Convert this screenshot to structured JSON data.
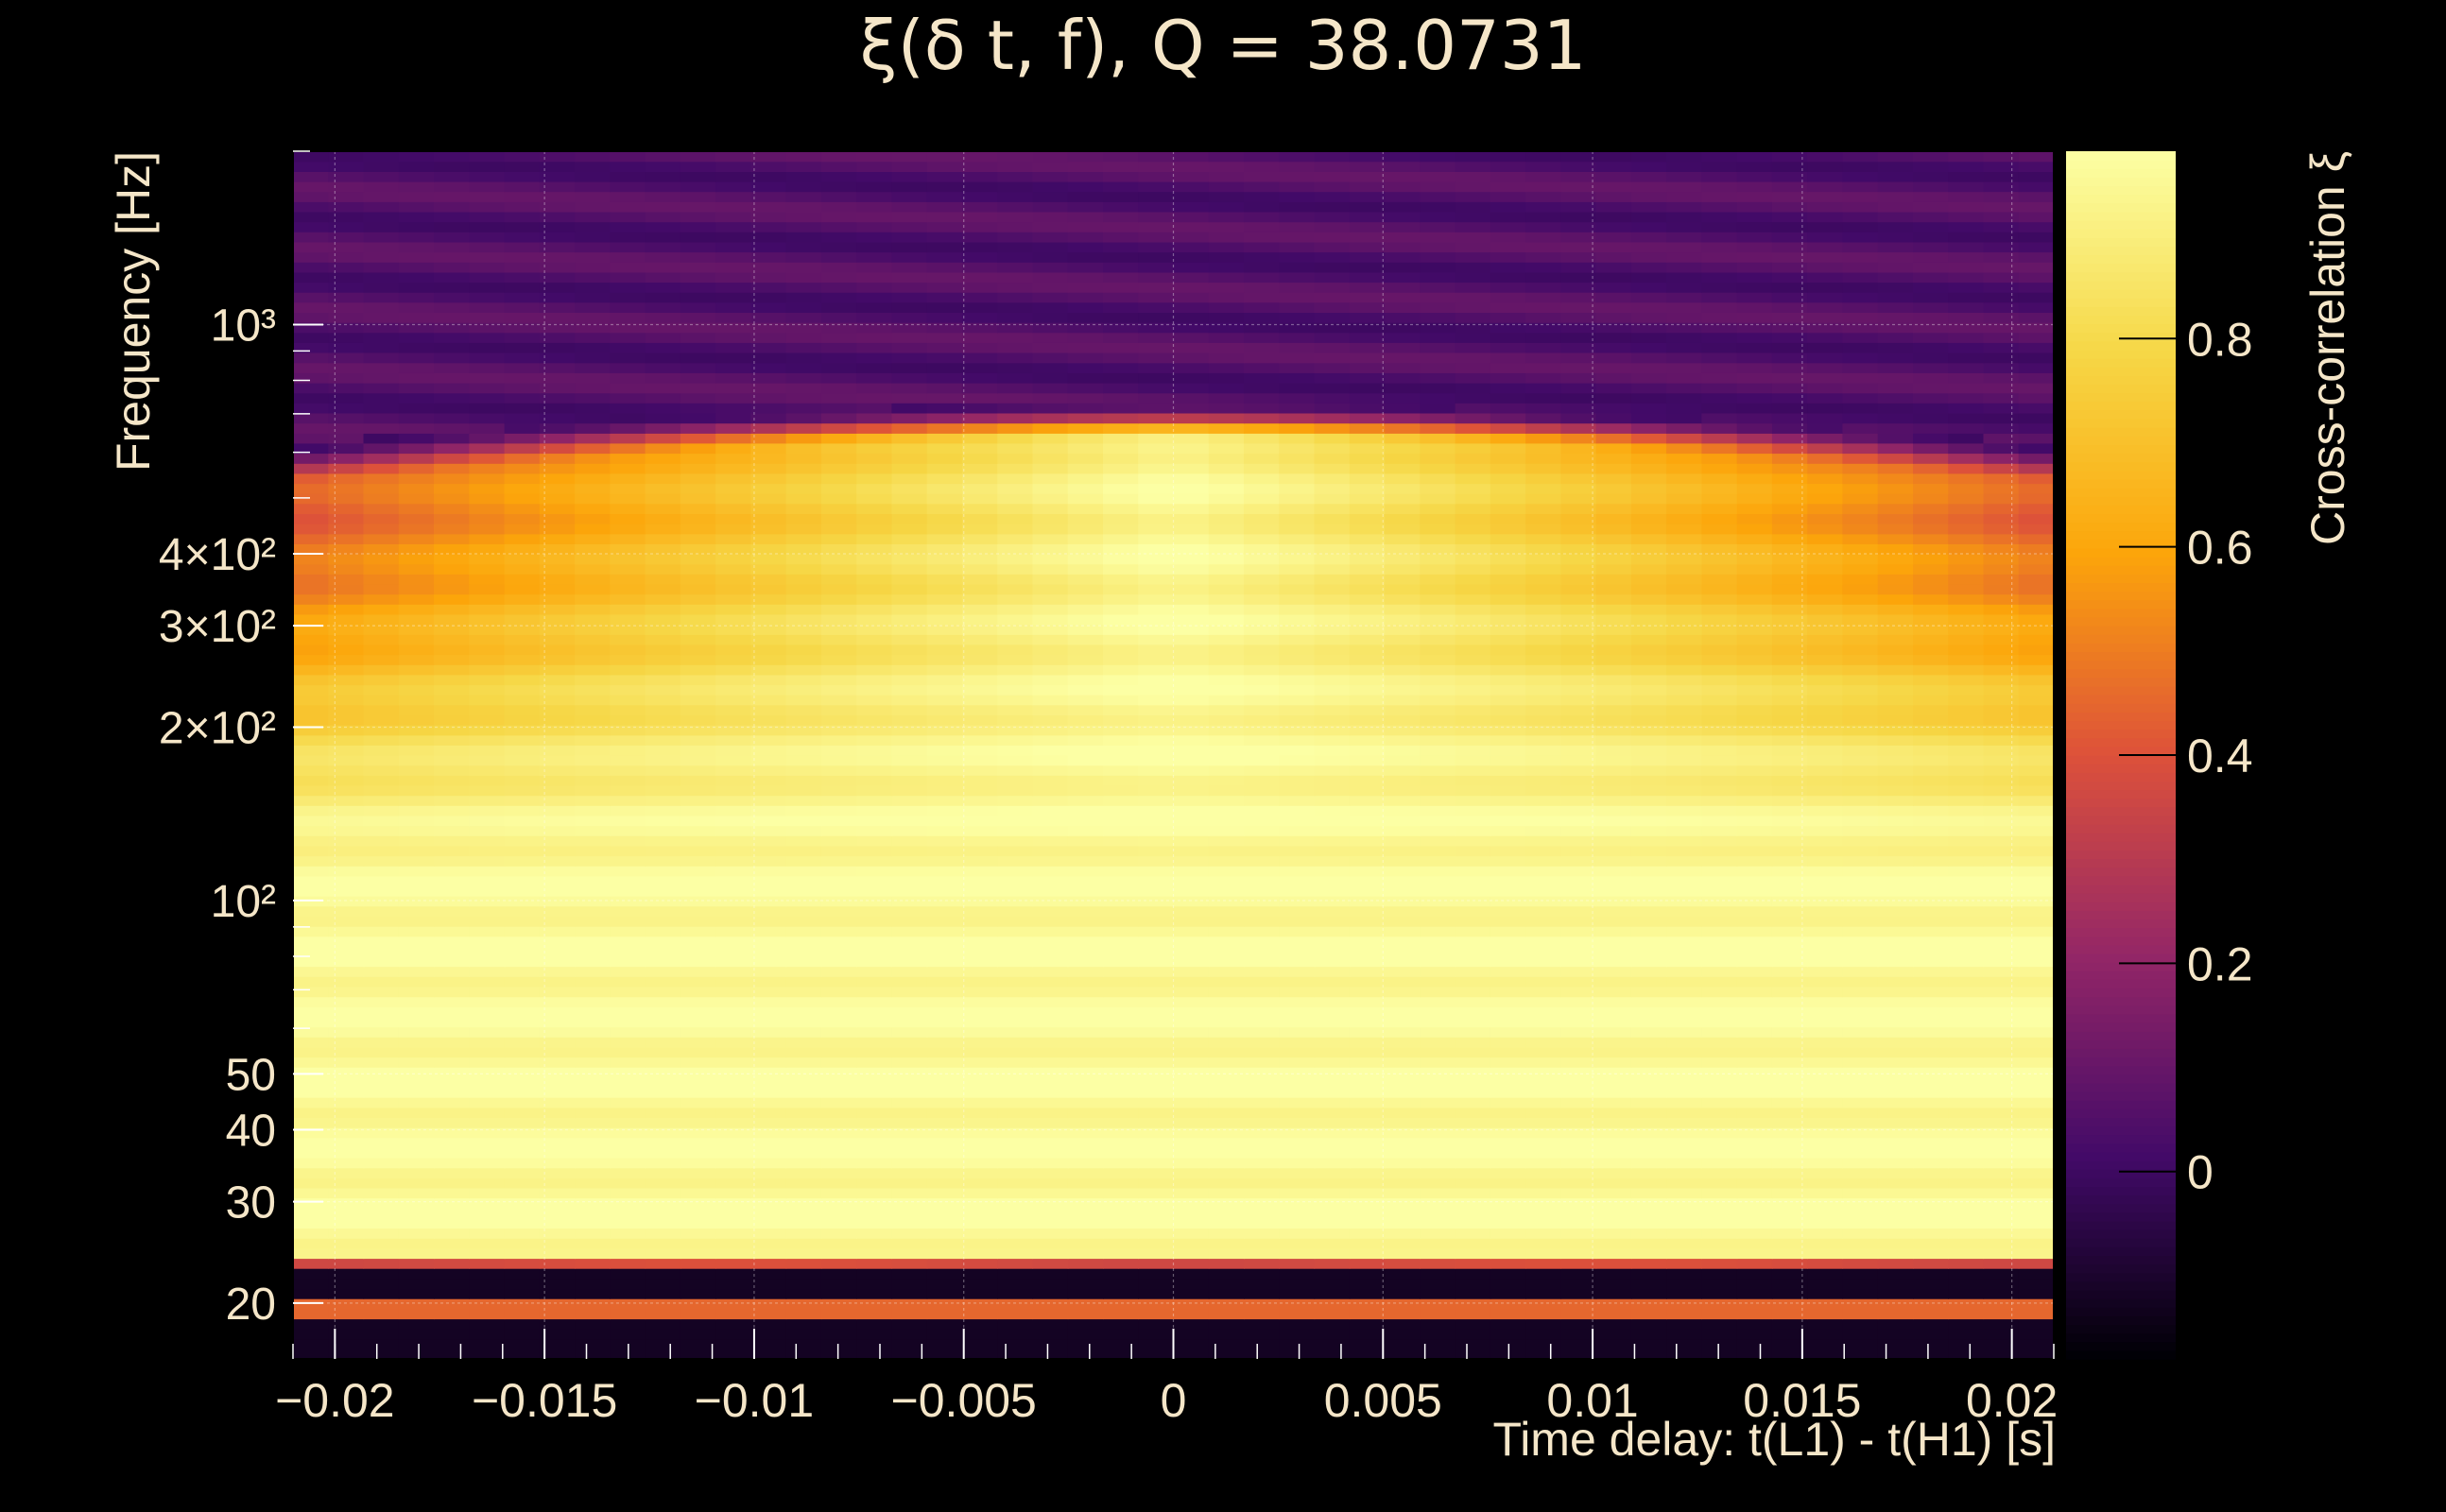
{
  "chart_data": {
    "type": "heatmap",
    "title": "ξ(δ t, f), Q = 38.0731",
    "xlabel": "Time delay: t(L1) - t(H1) [s]",
    "ylabel": "Frequency [Hz]",
    "colorbar_label": "Cross-correlation ξ",
    "x_range": [
      -0.021,
      0.021
    ],
    "y_range": [
      16,
      2000
    ],
    "y_scale": "log",
    "z_range": [
      -0.18,
      0.98
    ],
    "x_ticks": [
      {
        "value": -0.02,
        "label": "−0.02"
      },
      {
        "value": -0.015,
        "label": "−0.015"
      },
      {
        "value": -0.01,
        "label": "−0.01"
      },
      {
        "value": -0.005,
        "label": "−0.005"
      },
      {
        "value": 0,
        "label": "0"
      },
      {
        "value": 0.005,
        "label": "0.005"
      },
      {
        "value": 0.01,
        "label": "0.01"
      },
      {
        "value": 0.015,
        "label": "0.015"
      },
      {
        "value": 0.02,
        "label": "0.02"
      }
    ],
    "y_ticks": [
      {
        "value": 20,
        "label": "20"
      },
      {
        "value": 30,
        "label": "30"
      },
      {
        "value": 40,
        "label": "40"
      },
      {
        "value": 50,
        "label": "50"
      },
      {
        "value": 100,
        "label": "10²"
      },
      {
        "value": 200,
        "label": "2×10²"
      },
      {
        "value": 300,
        "label": "3×10²"
      },
      {
        "value": 400,
        "label": "4×10²"
      },
      {
        "value": 1000,
        "label": "10³"
      }
    ],
    "colorbar_ticks": [
      {
        "value": 0,
        "label": "0"
      },
      {
        "value": 0.2,
        "label": "0.2"
      },
      {
        "value": 0.4,
        "label": "0.4"
      },
      {
        "value": 0.6,
        "label": "0.6"
      },
      {
        "value": 0.8,
        "label": "0.8"
      }
    ],
    "colormap": [
      "#000004",
      "#420a68",
      "#932667",
      "#dd513a",
      "#fca50a",
      "#f6d746",
      "#fcffa4"
    ],
    "grid": true,
    "features": {
      "peak_time_delay": 0,
      "bright_band_hz": [
        25,
        650
      ],
      "upper_edge_hz": 650,
      "low_band_hz": 23,
      "low_stripe_hz": 19.5
    }
  }
}
